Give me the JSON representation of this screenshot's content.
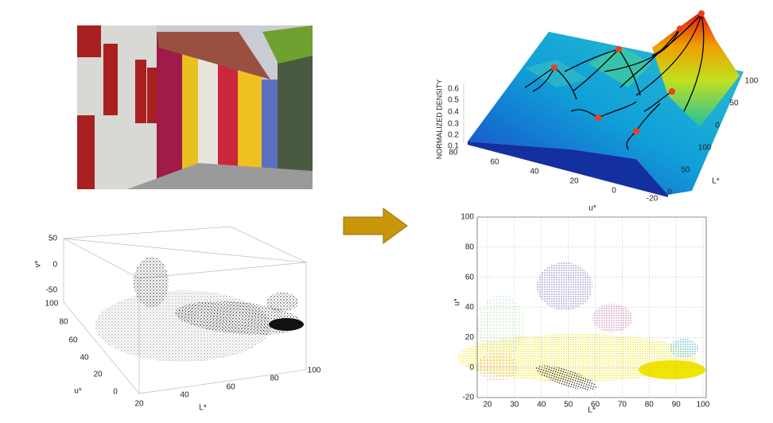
{
  "scatter3d": {
    "z_label": "v*",
    "z_ticks": [
      50,
      0,
      -50
    ],
    "y_label": "u*",
    "y_ticks": [
      100,
      80,
      60,
      40,
      20,
      0
    ],
    "x_label": "L*",
    "x_ticks": [
      20,
      40,
      60,
      80,
      100
    ]
  },
  "density": {
    "z_label": "NORMALIZED DENSITY",
    "z_ticks": [
      0.6,
      0.5,
      0.4,
      0.3,
      0.2,
      0.1,
      0
    ],
    "u_label": "u*",
    "u_ticks": [
      80,
      60,
      40,
      20,
      0,
      -20
    ],
    "v_ticks": [
      100,
      50,
      0
    ],
    "l_label": "L*",
    "l_ticks": [
      100,
      50,
      0
    ]
  },
  "scatter2d": {
    "y_label": "u*",
    "y_ticks": [
      100,
      80,
      60,
      40,
      20,
      0,
      -20
    ],
    "x_label": "L*",
    "x_ticks": [
      20,
      30,
      40,
      50,
      60,
      70,
      80,
      90,
      100
    ]
  }
}
